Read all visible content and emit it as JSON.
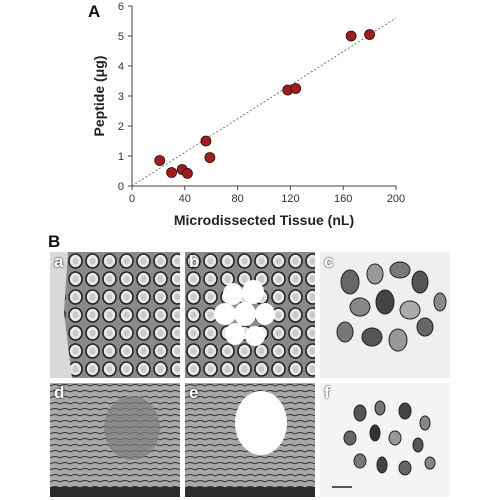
{
  "figure": {
    "panel_a_label": "A",
    "panel_b_label": "B",
    "micrograph_labels": [
      "a",
      "b",
      "c",
      "d",
      "e",
      "f"
    ]
  },
  "chart_data": {
    "type": "scatter",
    "xlabel": "Microdissected Tissue (nL)",
    "ylabel": "Peptide (μg)",
    "xlim": [
      0,
      200
    ],
    "ylim": [
      0,
      6
    ],
    "xticks": [
      "0",
      "40",
      "80",
      "120",
      "160",
      "200"
    ],
    "yticks": [
      "0",
      "1",
      "2",
      "3",
      "4",
      "5",
      "6"
    ],
    "x": [
      21,
      30,
      38,
      42,
      56,
      59,
      118,
      124,
      166,
      180
    ],
    "y": [
      0.85,
      0.45,
      0.55,
      0.42,
      1.5,
      0.95,
      3.2,
      3.25,
      5.0,
      5.05
    ],
    "trendline": {
      "x": [
        0,
        200
      ],
      "y": [
        0,
        5.6
      ],
      "style": "dotted"
    },
    "marker_color": "#a01d1d",
    "grid": false
  }
}
